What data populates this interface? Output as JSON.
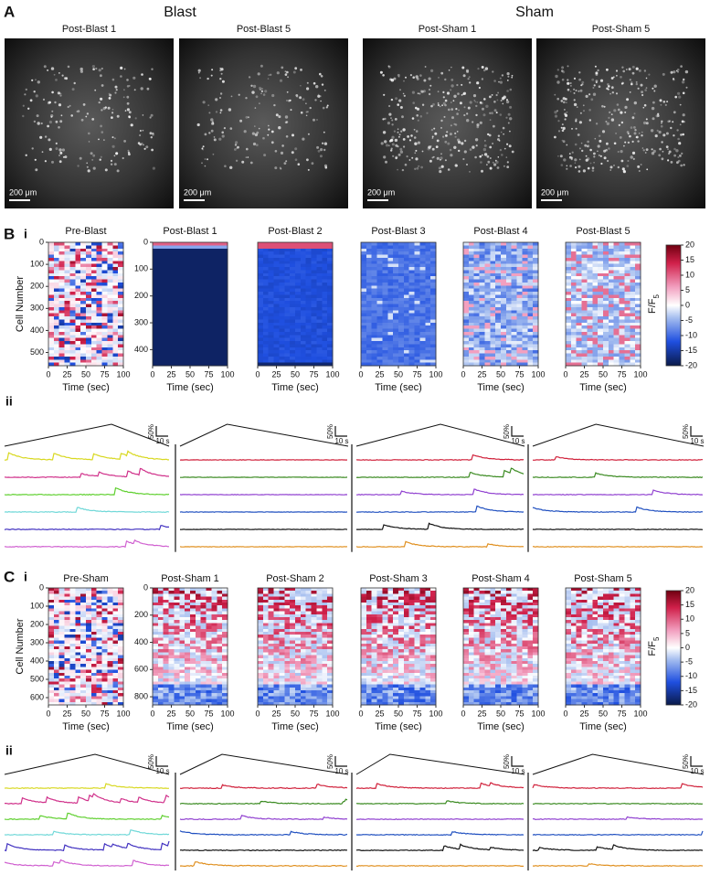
{
  "figure": {
    "panel_a": {
      "label": "A",
      "groups": [
        {
          "title": "Blast",
          "images": [
            {
              "title": "Post-Blast 1",
              "scale_bar": "200 μm"
            },
            {
              "title": "Post-Blast 5",
              "scale_bar": "200 μm"
            }
          ]
        },
        {
          "title": "Sham",
          "images": [
            {
              "title": "Post-Sham 1",
              "scale_bar": "200 μm"
            },
            {
              "title": "Post-Sham 5",
              "scale_bar": "200 μm"
            }
          ]
        }
      ]
    },
    "panel_b": {
      "label": "B",
      "part_i": "i",
      "part_ii": "ii",
      "y_label": "Cell Number",
      "heatmaps": [
        {
          "title": "Pre-Blast",
          "ylim": [
            0,
            560
          ],
          "yticks": [
            0,
            100,
            200,
            300,
            400,
            500
          ],
          "xlim": [
            0,
            100
          ],
          "xticks": [
            0,
            25,
            50,
            75,
            100
          ],
          "x_label": "Time (sec)"
        },
        {
          "title": "Post-Blast 1",
          "ylim": [
            0,
            460
          ],
          "yticks": [
            0,
            100,
            200,
            300,
            400
          ],
          "xlim": [
            0,
            100
          ],
          "xticks": [
            0,
            25,
            50,
            75,
            100
          ],
          "x_label": "Time (sec)"
        },
        {
          "title": "Post-Blast 2",
          "xlim": [
            0,
            100
          ],
          "xticks": [
            0,
            25,
            50,
            75,
            100
          ],
          "x_label": "Time (sec)"
        },
        {
          "title": "Post-Blast 3",
          "xlim": [
            0,
            100
          ],
          "xticks": [
            0,
            25,
            50,
            75,
            100
          ],
          "x_label": "Time (sec)"
        },
        {
          "title": "Post-Blast 4",
          "xlim": [
            0,
            100
          ],
          "xticks": [
            0,
            25,
            50,
            75,
            100
          ],
          "x_label": "Time (sec)"
        },
        {
          "title": "Post-Blast 5",
          "xlim": [
            0,
            100
          ],
          "xticks": [
            0,
            25,
            50,
            75,
            100
          ],
          "x_label": "Time (sec)"
        }
      ],
      "colorbar": {
        "label": "F/F",
        "label_sub": "5",
        "clim": [
          -20,
          20
        ],
        "ticks": [
          20,
          15,
          10,
          5,
          0,
          -5,
          -10,
          -15,
          -20
        ]
      },
      "traces": [
        {
          "scale_y": "50%",
          "scale_x": "10 s"
        },
        {
          "scale_y": "50%",
          "scale_x": "10 s"
        },
        {
          "scale_y": "50%",
          "scale_x": "10 s"
        },
        {
          "scale_y": "50%",
          "scale_x": "10 s"
        }
      ]
    },
    "panel_c": {
      "label": "C",
      "part_i": "i",
      "part_ii": "ii",
      "y_label": "Cell Number",
      "heatmaps": [
        {
          "title": "Pre-Sham",
          "ylim": [
            0,
            640
          ],
          "yticks": [
            0,
            100,
            200,
            300,
            400,
            500,
            600
          ],
          "xlim": [
            0,
            100
          ],
          "xticks": [
            0,
            25,
            50,
            75,
            100
          ],
          "x_label": "Time (sec)"
        },
        {
          "title": "Post-Sham 1",
          "ylim": [
            0,
            860
          ],
          "yticks": [
            0,
            200,
            400,
            600,
            800
          ],
          "xlim": [
            0,
            100
          ],
          "xticks": [
            0,
            25,
            50,
            75,
            100
          ],
          "x_label": "Time (sec)"
        },
        {
          "title": "Post-Sham 2",
          "xlim": [
            0,
            100
          ],
          "xticks": [
            0,
            25,
            50,
            75,
            100
          ],
          "x_label": "Time (sec)"
        },
        {
          "title": "Post-Sham 3",
          "xlim": [
            0,
            100
          ],
          "xticks": [
            0,
            25,
            50,
            75,
            100
          ],
          "x_label": "Time (sec)"
        },
        {
          "title": "Post-Sham 4",
          "xlim": [
            0,
            100
          ],
          "xticks": [
            0,
            25,
            50,
            75,
            100
          ],
          "x_label": "Time (sec)"
        },
        {
          "title": "Post-Sham 5",
          "xlim": [
            0,
            100
          ],
          "xticks": [
            0,
            25,
            50,
            75,
            100
          ],
          "x_label": "Time (sec)"
        }
      ],
      "colorbar": {
        "label": "F/F",
        "label_sub": "5",
        "clim": [
          -20,
          20
        ],
        "ticks": [
          20,
          15,
          10,
          5,
          0,
          -5,
          -10,
          -15,
          -20
        ]
      },
      "traces": [
        {
          "scale_y": "50%",
          "scale_x": "10 s"
        },
        {
          "scale_y": "50%",
          "scale_x": "10 s"
        },
        {
          "scale_y": "50%",
          "scale_x": "10 s"
        },
        {
          "scale_y": "50%",
          "scale_x": "10 s"
        }
      ]
    }
  }
}
